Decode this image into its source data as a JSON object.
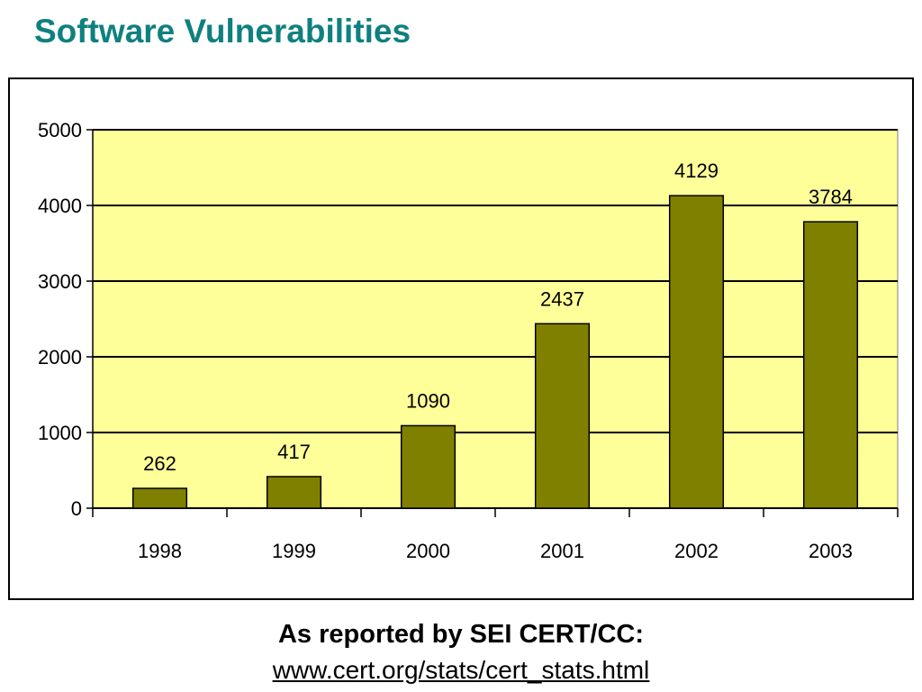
{
  "slide": {
    "title": "Software Vulnerabilities",
    "caption": "As reported by SEI CERT/CC:",
    "link_text": "www.cert.org/stats/cert_stats.html"
  },
  "colors": {
    "title": "#0f8080",
    "plot_background": "#ffff99",
    "bar_fill": "#808000",
    "bar_stroke": "#000000",
    "gridline": "#000000"
  },
  "chart_data": {
    "type": "bar",
    "title": "",
    "xlabel": "",
    "ylabel": "",
    "categories": [
      "1998",
      "1999",
      "2000",
      "2001",
      "2002",
      "2003"
    ],
    "values": [
      262,
      417,
      1090,
      2437,
      4129,
      3784
    ],
    "data_labels": [
      "262",
      "417",
      "1090",
      "2437",
      "4129",
      "3784"
    ],
    "ylim": [
      0,
      5000
    ],
    "yticks": [
      0,
      1000,
      2000,
      3000,
      4000,
      5000
    ],
    "ytick_labels": [
      "0",
      "1000",
      "2000",
      "3000",
      "4000",
      "5000"
    ],
    "grid": true,
    "legend": "none"
  }
}
